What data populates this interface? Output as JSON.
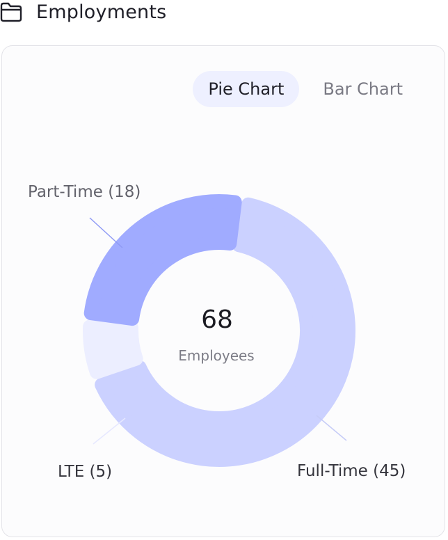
{
  "header": {
    "title": "Employments",
    "icon": "folder-icon"
  },
  "tabs": [
    {
      "label": "Pie Chart",
      "active": true
    },
    {
      "label": "Bar Chart",
      "active": false
    }
  ],
  "chart_data": {
    "type": "pie",
    "center": {
      "value": "68",
      "label": "Employees"
    },
    "slices": [
      {
        "name": "Full-Time",
        "value": 45,
        "label": "Full-Time (45)",
        "color": "#cbd1ff"
      },
      {
        "name": "LTE",
        "value": 5,
        "label": "LTE (5)",
        "color": "#eceeff"
      },
      {
        "name": "Part-Time",
        "value": 18,
        "label": "Part-Time (18)",
        "color": "#a0abff"
      }
    ]
  }
}
